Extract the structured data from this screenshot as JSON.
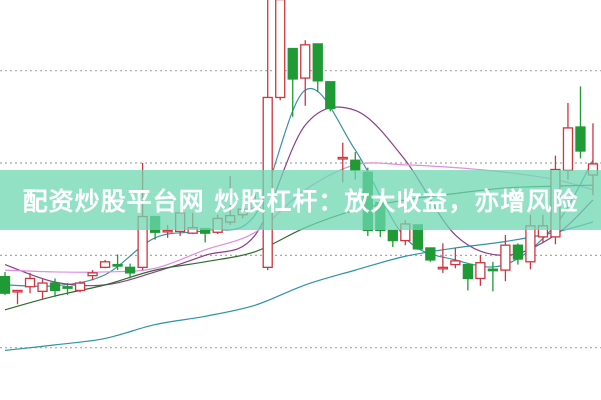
{
  "banner": {
    "text": "配资炒股平台网 炒股杠杆：放大收益，亦增风险"
  },
  "chart_data": {
    "type": "candlestick",
    "title": "",
    "xlabel": "",
    "ylabel": "",
    "ylim": [
      4.0,
      47.7
    ],
    "grid": {
      "horizontal": true,
      "style": "dotted",
      "levels": [
        10,
        20,
        30,
        40
      ]
    },
    "colors": {
      "up": "#d0343e",
      "down": "#1f9a34",
      "grid": "#a8a8a8",
      "banner": "#6ed7b2"
    },
    "candles": [
      [
        17.7,
        15.9,
        18.2,
        15.7
      ],
      [
        16.1,
        16.2,
        16.2,
        14.7
      ],
      [
        16.6,
        17.5,
        18.1,
        15.9
      ],
      [
        16.1,
        17.0,
        17.4,
        15.2
      ],
      [
        17.0,
        16.2,
        17.5,
        15.5
      ],
      [
        16.6,
        16.5,
        17.0,
        15.7
      ],
      [
        16.2,
        17.0,
        17.2,
        16.0
      ],
      [
        17.8,
        18.1,
        18.4,
        17.3
      ],
      [
        18.7,
        19.3,
        19.5,
        18.6
      ],
      [
        19.0,
        18.9,
        20.1,
        18.4
      ],
      [
        18.7,
        18.1,
        19.1,
        17.5
      ],
      [
        18.7,
        24.2,
        30.0,
        18.4
      ],
      [
        24.2,
        22.5,
        24.2,
        21.7
      ],
      [
        22.6,
        22.7,
        23.3,
        21.9
      ],
      [
        22.6,
        24.6,
        24.6,
        22.1
      ],
      [
        22.4,
        23.0,
        24.6,
        22.3
      ],
      [
        22.9,
        22.4,
        22.9,
        21.4
      ],
      [
        22.5,
        24.0,
        24.4,
        22.3
      ],
      [
        23.6,
        24.3,
        28.6,
        23.3
      ],
      [
        24.4,
        25.0,
        25.5,
        24.0
      ],
      [
        25.0,
        26.0,
        27.0,
        24.8
      ],
      [
        18.7,
        37.1,
        47.7,
        18.4
      ],
      [
        37.1,
        47.7,
        47.7,
        36.8
      ],
      [
        42.4,
        39.1,
        42.4,
        35.0
      ],
      [
        39.2,
        42.8,
        43.3,
        36.2
      ],
      [
        42.9,
        38.9,
        42.9,
        37.7
      ],
      [
        38.8,
        35.9,
        38.8,
        35.6
      ],
      [
        30.5,
        30.6,
        32.2,
        27.9
      ],
      [
        30.3,
        29.2,
        31.2,
        28.2
      ],
      [
        29.0,
        22.7,
        29.5,
        22.1
      ],
      [
        25.7,
        22.7,
        26.0,
        22.0
      ],
      [
        22.7,
        21.6,
        22.7,
        20.9
      ],
      [
        21.6,
        23.4,
        23.8,
        21.1
      ],
      [
        23.3,
        20.7,
        23.3,
        20.6
      ],
      [
        20.8,
        19.5,
        20.8,
        19.3
      ],
      [
        18.6,
        18.7,
        21.3,
        18.1
      ],
      [
        19.0,
        19.4,
        20.8,
        18.6
      ],
      [
        19.0,
        17.5,
        19.0,
        16.2
      ],
      [
        17.5,
        19.2,
        20.0,
        16.7
      ],
      [
        18.5,
        18.4,
        19.3,
        16.1
      ],
      [
        18.4,
        21.1,
        22.2,
        17.2
      ],
      [
        21.1,
        19.6,
        21.3,
        19.0
      ],
      [
        19.3,
        23.2,
        24.4,
        18.5
      ],
      [
        22.0,
        23.2,
        24.4,
        21.4
      ],
      [
        22.0,
        29.3,
        30.8,
        21.2
      ],
      [
        29.2,
        33.8,
        36.5,
        28.2
      ],
      [
        33.9,
        31.3,
        38.3,
        30.5
      ],
      [
        28.7,
        29.9,
        34.3,
        26.5
      ]
    ],
    "candle_fields": [
      "open",
      "close",
      "high",
      "low"
    ],
    "ma_index": [
      0,
      4,
      8,
      12,
      16,
      20,
      24,
      28,
      32,
      36,
      40,
      44,
      47
    ],
    "moving_averages": [
      {
        "color": "#3a8fa8",
        "values": [
          16.8,
          16.7,
          17.9,
          21.9,
          22.7,
          24.4,
          37.9,
          31.4,
          21.9,
          19.5,
          19.0,
          23.3,
          30.3
        ]
      },
      {
        "color": "#8a3d8a",
        "values": [
          19.0,
          17.1,
          16.8,
          18.2,
          20.0,
          22.2,
          34.1,
          35.7,
          30.3,
          22.2,
          20.0,
          22.2,
          26.0
        ]
      },
      {
        "color": "#e08ee0",
        "values": [
          18.4,
          18.2,
          18.2,
          18.6,
          20.6,
          22.5,
          27.1,
          29.8,
          29.8,
          29.5,
          29.0,
          28.2,
          27.1
        ]
      },
      {
        "color": "#2f6b2f",
        "values": [
          14.1,
          15.6,
          16.8,
          18.4,
          19.3,
          20.4,
          23.0,
          24.9,
          26.0,
          26.7,
          27.3,
          27.5,
          27.6
        ]
      },
      {
        "color": "#2e93a6",
        "values": [
          9.7,
          10.3,
          11.0,
          12.5,
          13.4,
          14.6,
          16.8,
          18.4,
          19.9,
          20.8,
          21.5,
          22.5,
          23.6
        ]
      }
    ]
  }
}
